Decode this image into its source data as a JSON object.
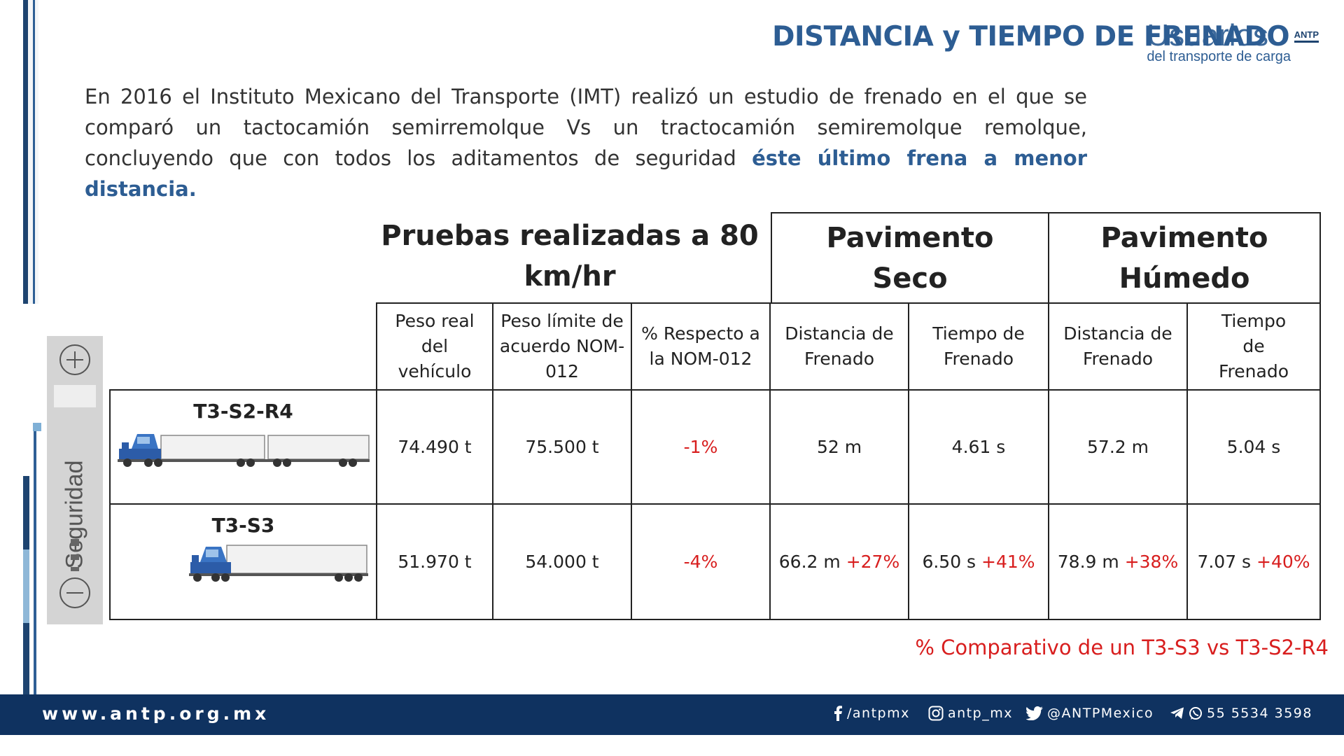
{
  "header": {
    "title": "DISTANCIA y TIEMPO DE FRENADO",
    "brand_word": "Usuarios",
    "brand_sub": "del transporte de carga",
    "brand_logo": "ANTP"
  },
  "intro": {
    "text": "En 2016 el Instituto Mexicano del Transporte (IMT) realizó un estudio de frenado en el que se comparó un tactocamión semirremolque Vs un tractocamión semiremolque remolque, concluyendo que con todos los aditamentos de seguridad ",
    "highlight": "éste último frena a menor distancia."
  },
  "scale": {
    "label": "Seguridad",
    "icons": [
      "plus-circle-icon",
      "minus-circle-icon"
    ]
  },
  "table": {
    "title": "Pruebas realizadas a 80 km/hr",
    "group_dry": "Pavimento Seco",
    "group_wet": "Pavimento Húmedo",
    "columns": [
      "Peso real del vehículo",
      "Peso límite de acuerdo NOM-012",
      "% Respecto a la NOM-012",
      "Distancia de Frenado",
      "Tiempo de Frenado",
      "Distancia de Frenado",
      "Tiempo de Frenado"
    ],
    "rows": [
      {
        "name": "T3-S2-R4",
        "icon": "double-trailer-truck-icon",
        "peso_real": "74.490 t",
        "peso_limite": "75.500 t",
        "pct_nom": "-1%",
        "seco_dist": "52 m",
        "seco_dist_delta": "",
        "seco_tiempo": "4.61 s",
        "seco_tiempo_delta": "",
        "hum_dist": "57.2 m",
        "hum_dist_delta": "",
        "hum_tiempo": "5.04 s",
        "hum_tiempo_delta": ""
      },
      {
        "name": "T3-S3",
        "icon": "single-trailer-truck-icon",
        "peso_real": "51.970 t",
        "peso_limite": "54.000 t",
        "pct_nom": "-4%",
        "seco_dist": "66.2 m",
        "seco_dist_delta": "+27%",
        "seco_tiempo": "6.50 s",
        "seco_tiempo_delta": "+41%",
        "hum_dist": "78.9 m",
        "hum_dist_delta": "+38%",
        "hum_tiempo": "7.07 s",
        "hum_tiempo_delta": "+40%"
      }
    ],
    "footnote": "% Comparativo de un T3-S3 vs T3-S2-R4"
  },
  "footer": {
    "url": "www.antp.org.mx",
    "facebook": "/antpmx",
    "instagram": "antp_mx",
    "twitter": "@ANTPMexico",
    "phone": "55 5534 3598"
  },
  "colors": {
    "brand_blue": "#2d5d93",
    "dark_navy": "#0f3260",
    "accent_red": "#d81e1e",
    "truck_blue": "#3a74c4"
  }
}
